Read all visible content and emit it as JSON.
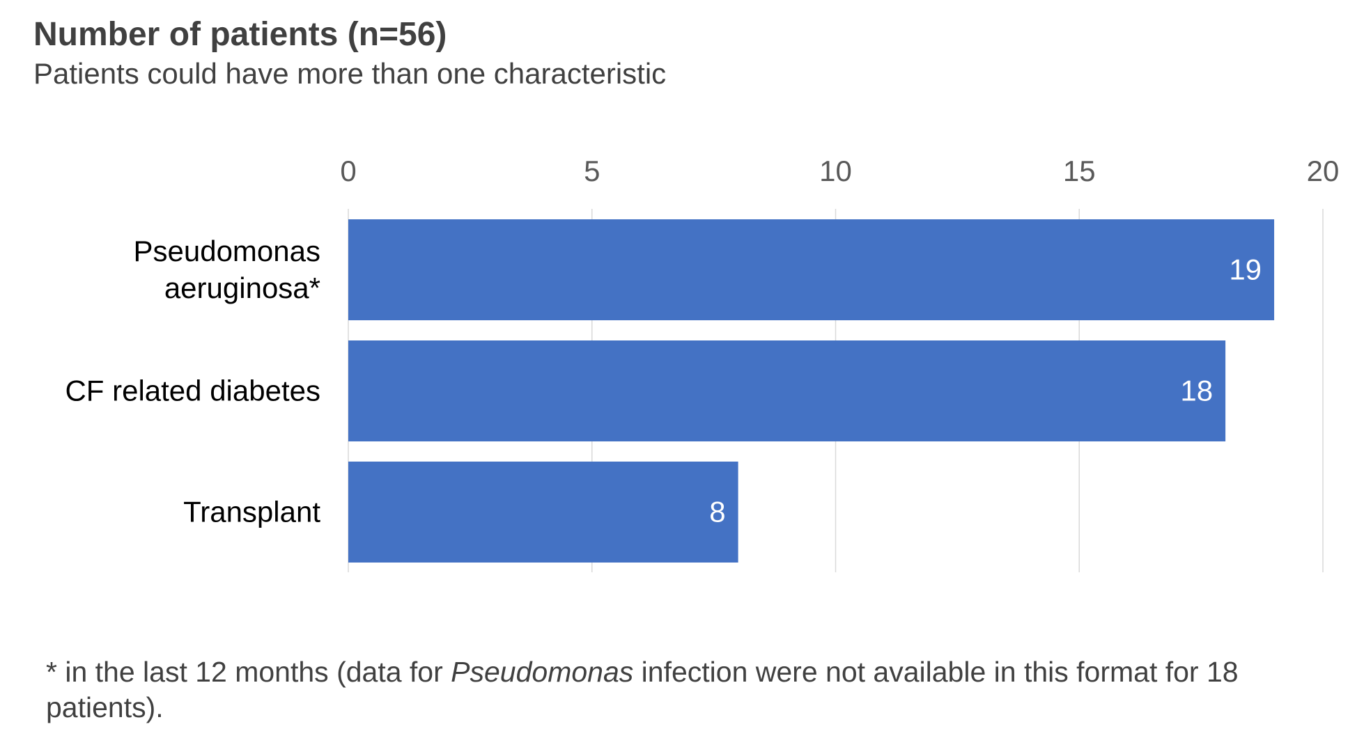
{
  "chart_data": {
    "type": "bar",
    "orientation": "horizontal",
    "title": "Number of patients (n=56)",
    "subtitle": "Patients could have more than one characteristic",
    "categories": [
      [
        "Pseudomonas",
        "aeruginosa*"
      ],
      [
        "CF related diabetes"
      ],
      [
        "Transplant"
      ]
    ],
    "values": [
      19,
      18,
      8
    ],
    "xlim": [
      0,
      20
    ],
    "xticks": [
      0,
      5,
      10,
      15,
      20
    ],
    "x_axis_position": "top",
    "grid": true,
    "legend": "none",
    "colors": {
      "bar": "#4472C4",
      "grid": "#D9D9D9",
      "value_label": "#FFFFFF",
      "category_label": "#000000",
      "tick_label": "#595959"
    }
  },
  "footnote": {
    "before": "* in the last 12 months (data for ",
    "italic": "Pseudomonas",
    "after": " infection were not available in this format for 18 patients)."
  }
}
